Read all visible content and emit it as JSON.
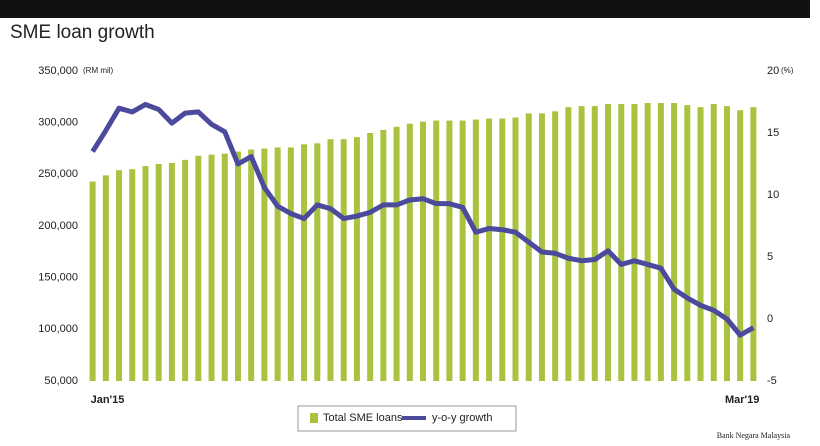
{
  "chart_data": {
    "type": "bar_line",
    "title": "SME loan growth",
    "y_unit": "(RM mil)",
    "y2_unit": "(%)",
    "source": "Bank Negara Malaysia",
    "categories": [
      "Jan'15",
      null,
      null,
      null,
      null,
      null,
      null,
      null,
      null,
      null,
      null,
      null,
      null,
      null,
      null,
      null,
      null,
      null,
      null,
      null,
      null,
      null,
      null,
      null,
      null,
      null,
      null,
      null,
      null,
      null,
      null,
      null,
      null,
      null,
      null,
      null,
      null,
      null,
      null,
      null,
      null,
      null,
      null,
      null,
      null,
      null,
      null,
      null,
      null,
      null,
      "Mar'19"
    ],
    "ylim": [
      50000,
      350000
    ],
    "yticks": [
      {
        "value": 50000,
        "label": "50,000"
      },
      {
        "value": 100000,
        "label": "100,000"
      },
      {
        "value": 150000,
        "label": "150,000"
      },
      {
        "value": 200000,
        "label": "200,000"
      },
      {
        "value": 250000,
        "label": "250,000"
      },
      {
        "value": 300000,
        "label": "300,000"
      },
      {
        "value": 350000,
        "label": "350,000"
      }
    ],
    "y2lim": [
      -5,
      20
    ],
    "y2ticks": [
      -5,
      0,
      5,
      10,
      15,
      20
    ],
    "grid": false,
    "legend": "bottom",
    "series": [
      {
        "name": "Total SME loans",
        "type": "bar",
        "color": "#a9c23f",
        "values": [
          243000,
          249000,
          254000,
          255000,
          258000,
          260000,
          261000,
          264000,
          268000,
          269000,
          270000,
          272000,
          274000,
          275000,
          276000,
          276000,
          279000,
          280000,
          284000,
          284000,
          286000,
          290000,
          293000,
          296000,
          299000,
          301000,
          302000,
          302000,
          302000,
          303000,
          304000,
          304000,
          305000,
          309000,
          309000,
          311000,
          315000,
          316000,
          316000,
          318000,
          318000,
          318000,
          319000,
          319000,
          319000,
          317000,
          315000,
          318000,
          316000,
          312000,
          315000
        ]
      },
      {
        "name": "y-o-y growth",
        "type": "line",
        "axis": "y2",
        "color": "#4b4a9c",
        "values": [
          13.5,
          15.2,
          17.0,
          16.7,
          17.3,
          16.9,
          15.8,
          16.6,
          16.7,
          15.7,
          15.1,
          12.5,
          13.1,
          10.6,
          9.1,
          8.5,
          8.1,
          9.2,
          8.9,
          8.1,
          8.3,
          8.6,
          9.2,
          9.2,
          9.6,
          9.7,
          9.3,
          9.3,
          9.0,
          7.0,
          7.3,
          7.2,
          7.0,
          6.2,
          5.4,
          5.3,
          4.9,
          4.7,
          4.8,
          5.5,
          4.4,
          4.7,
          4.4,
          4.1,
          2.4,
          1.7,
          1.1,
          0.7,
          0.0,
          -1.3,
          -0.7
        ]
      }
    ]
  }
}
